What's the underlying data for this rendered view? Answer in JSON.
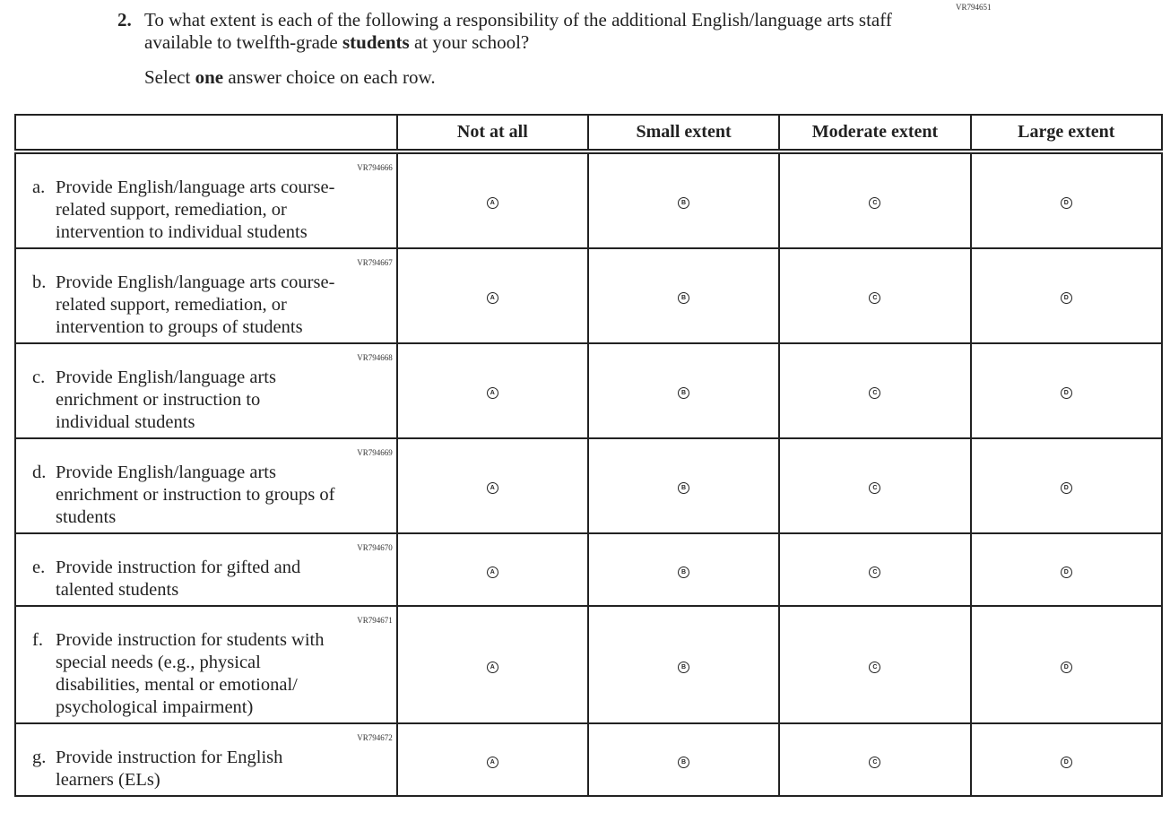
{
  "question": {
    "id": "VR794651",
    "number": "2.",
    "text_before": "To what extent is each of the following a responsibility of the additional English/language arts staff available to twelfth-grade ",
    "text_bold": "students",
    "text_after": " at your school?",
    "instruction_before": "Select ",
    "instruction_bold": "one",
    "instruction_after": " answer choice on each row."
  },
  "columns": [
    "Not at all",
    "Small extent",
    "Moderate extent",
    "Large extent"
  ],
  "bubbles": [
    "A",
    "B",
    "C",
    "D"
  ],
  "items": [
    {
      "id": "VR794666",
      "letter": "a.",
      "lines": [
        "Provide English/language arts course-",
        "related support, remediation, or",
        "intervention to individual students"
      ]
    },
    {
      "id": "VR794667",
      "letter": "b.",
      "lines": [
        "Provide English/language arts course-",
        "related support, remediation, or",
        "intervention to groups of students"
      ]
    },
    {
      "id": "VR794668",
      "letter": "c.",
      "lines": [
        "Provide English/language arts",
        "enrichment or instruction to",
        "individual students"
      ]
    },
    {
      "id": "VR794669",
      "letter": "d.",
      "lines": [
        "Provide English/language arts",
        "enrichment or instruction to groups of",
        "students"
      ]
    },
    {
      "id": "VR794670",
      "letter": "e.",
      "lines": [
        "Provide instruction for gifted and",
        "talented students"
      ]
    },
    {
      "id": "VR794671",
      "letter": "f.",
      "lines": [
        "Provide instruction for students with",
        "special needs (e.g., physical",
        "disabilities, mental or emotional/",
        "psychological impairment)"
      ]
    },
    {
      "id": "VR794672",
      "letter": "g.",
      "lines": [
        "Provide instruction for English",
        "learners (ELs)"
      ]
    }
  ]
}
